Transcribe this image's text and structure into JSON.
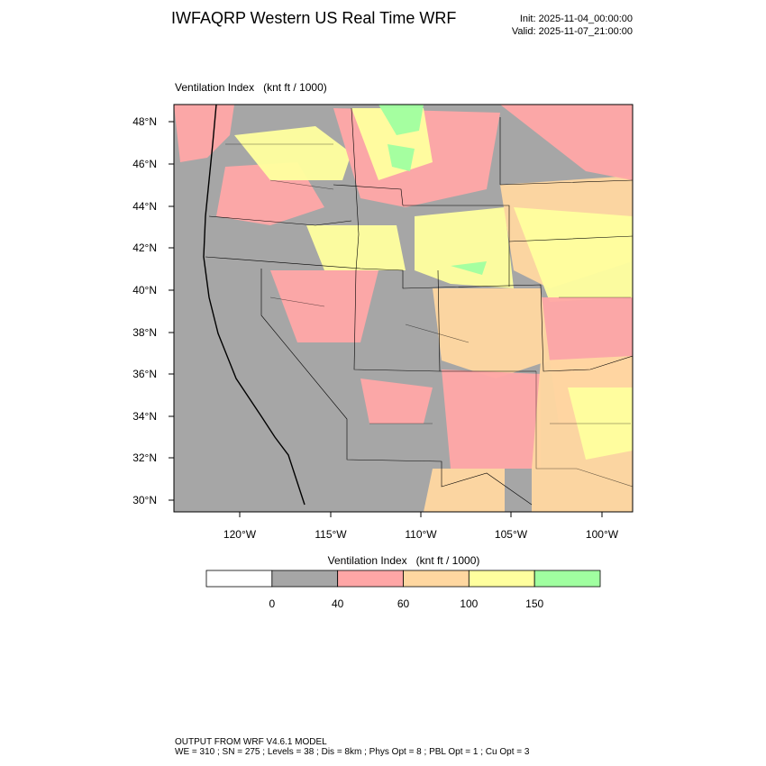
{
  "header": {
    "title": "IWFAQRP Western US Real Time WRF",
    "init": "Init: 2025-11-04_00:00:00",
    "valid": "Valid: 2025-11-07_21:00:00"
  },
  "map": {
    "field_label": "Ventilation Index   (knt ft / 1000)",
    "lat_labels": [
      "48°N",
      "46°N",
      "44°N",
      "42°N",
      "40°N",
      "38°N",
      "36°N",
      "34°N",
      "32°N",
      "30°N"
    ],
    "lon_labels": [
      "120°W",
      "115°W",
      "110°W",
      "105°W",
      "100°W"
    ]
  },
  "colorbar": {
    "title": "Ventilation Index   (knt ft / 1000)",
    "levels": [
      0,
      40,
      60,
      100,
      150
    ],
    "colors": [
      "#ffffff",
      "#a6a6a6",
      "#ffa6a6",
      "#ffd7a0",
      "#ffff9e",
      "#a0ffa0"
    ]
  },
  "footer": {
    "line1": "OUTPUT FROM WRF V4.6.1 MODEL",
    "line2": "WE = 310 ; SN = 275 ; Levels = 38 ; Dis = 8km ; Phys Opt = 8 ; PBL Opt = 1 ; Cu Opt = 3"
  }
}
